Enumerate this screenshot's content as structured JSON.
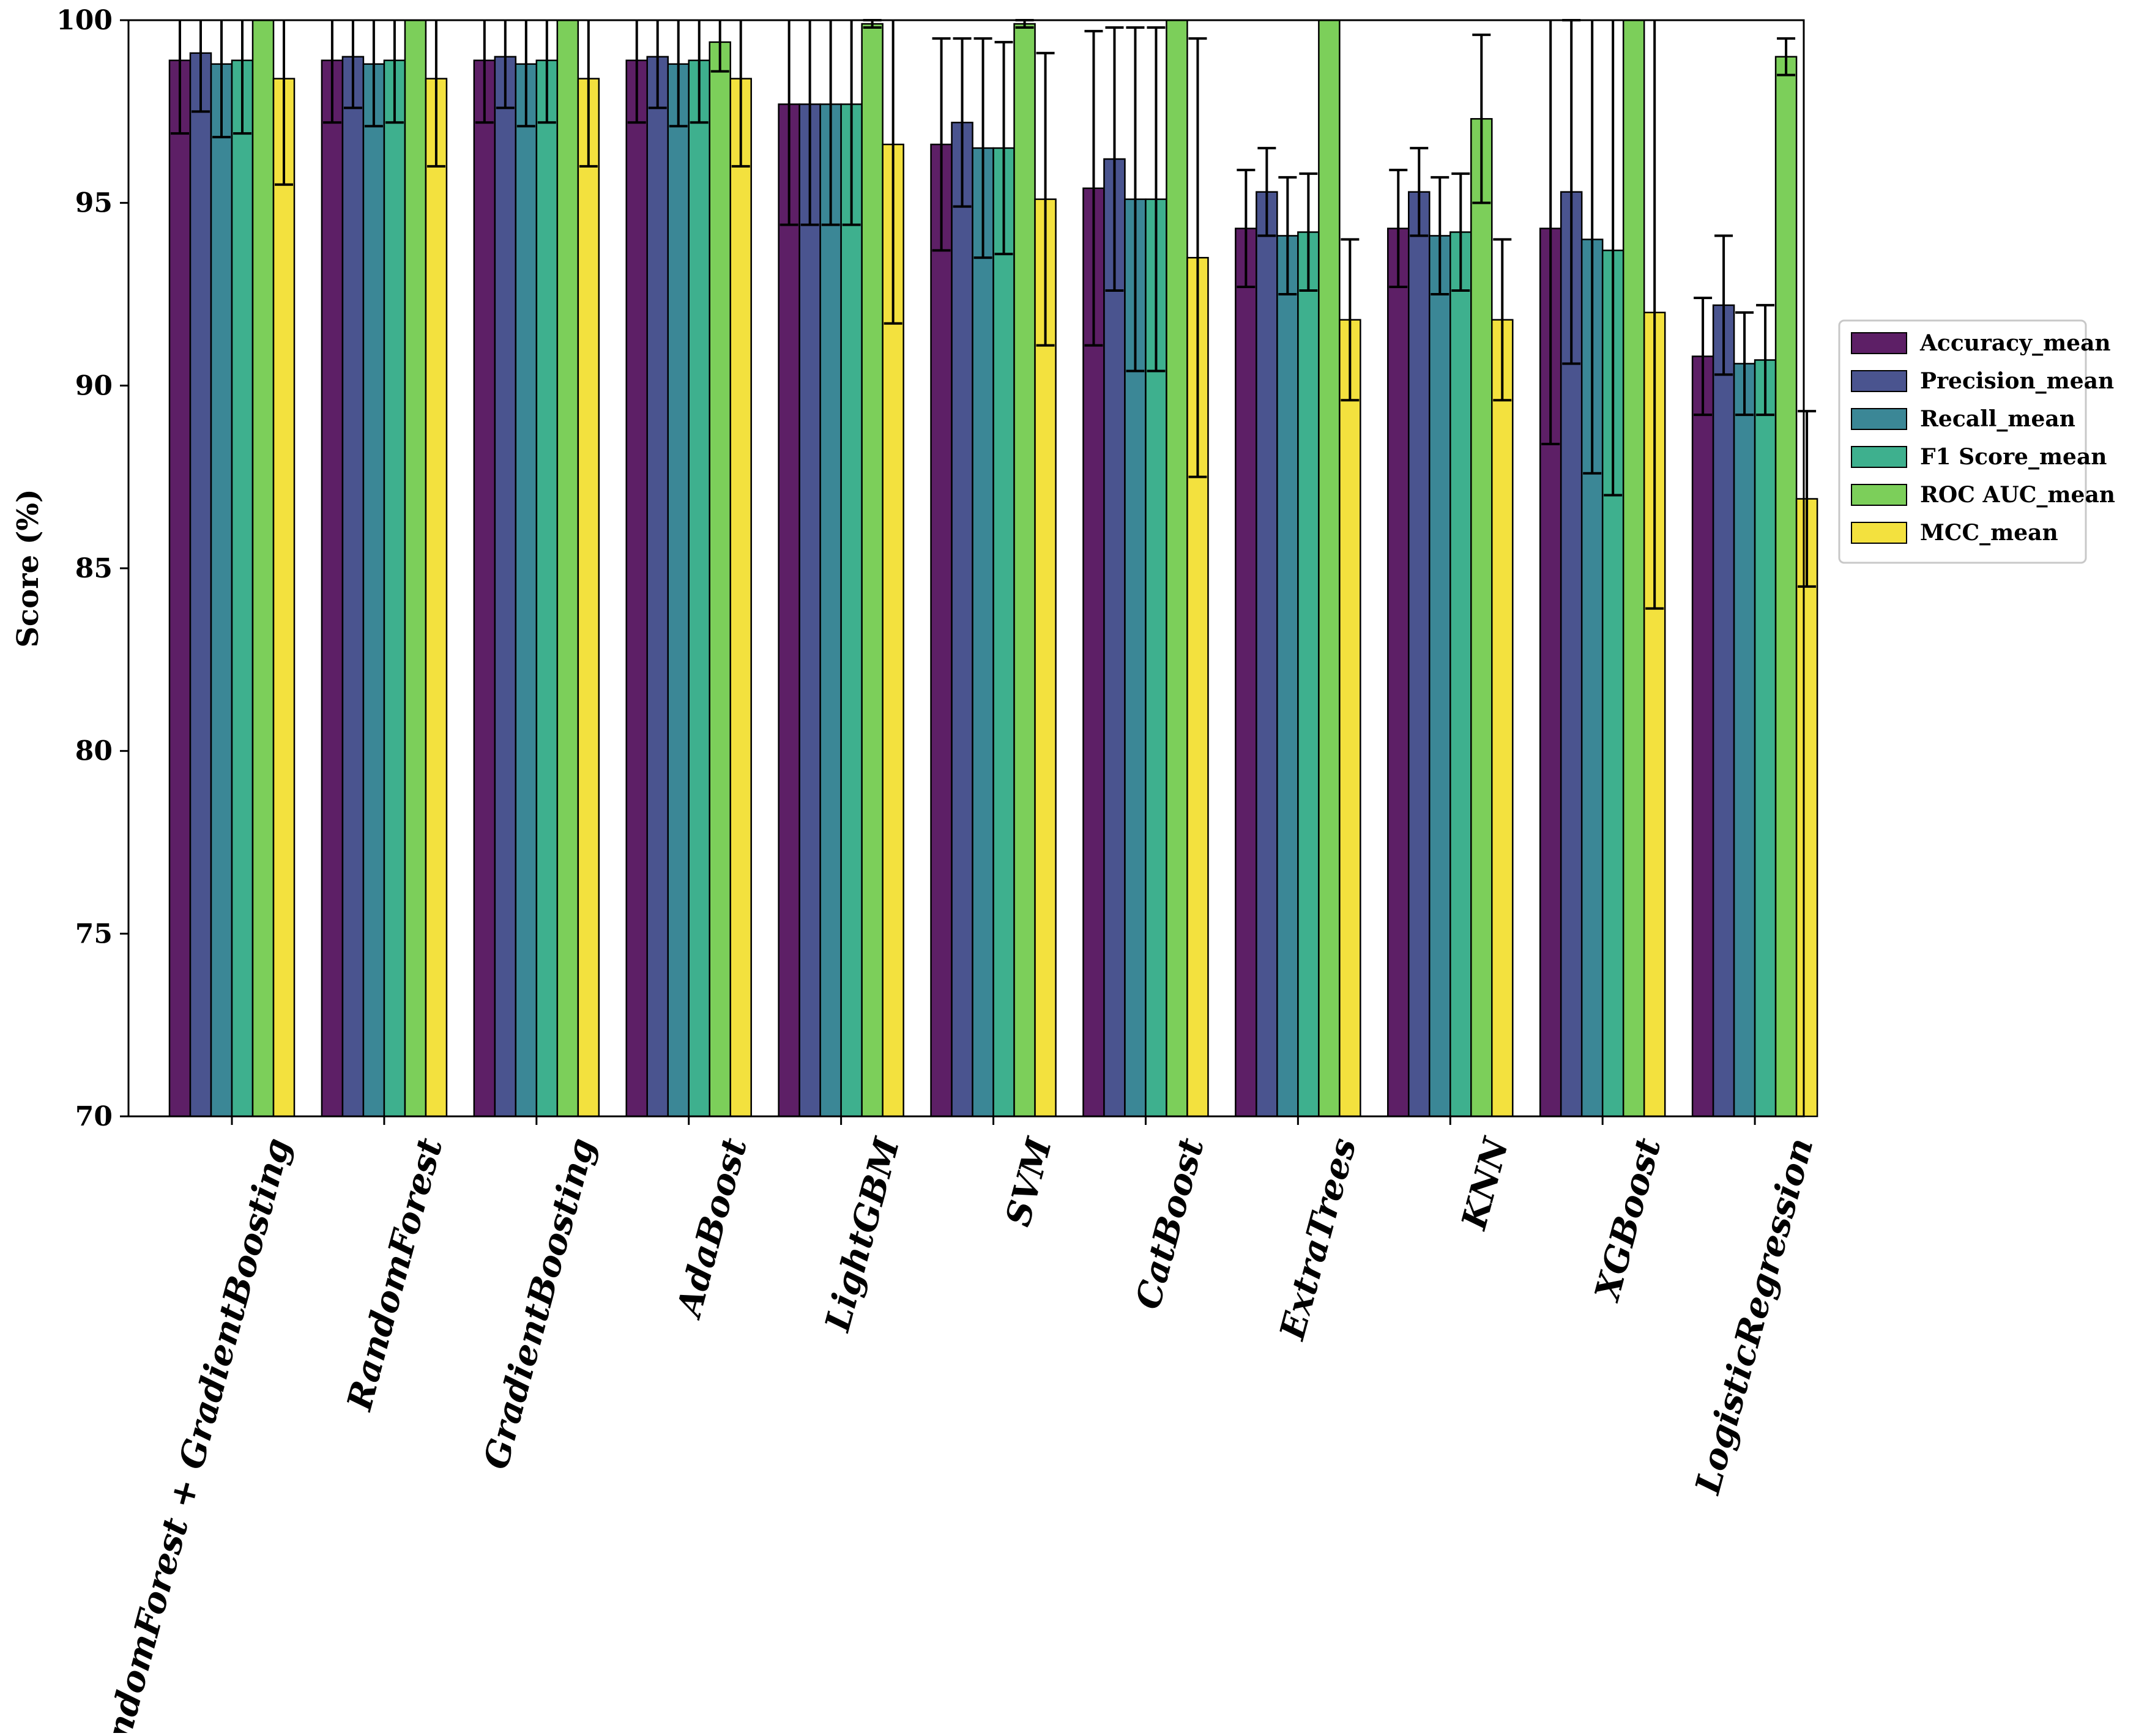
{
  "chart_data": {
    "type": "bar",
    "title": "",
    "xlabel": "",
    "ylabel": "Score (%)",
    "ylim": [
      70,
      100
    ],
    "yticks": [
      "70",
      "75",
      "80",
      "85",
      "90",
      "95",
      "100"
    ],
    "grid": false,
    "legend_position": "right",
    "categories": [
      "RandomForest + GradientBoosting",
      "RandomForest",
      "GradientBoosting",
      "AdaBoost",
      "LightGBM",
      "SVM",
      "CatBoost",
      "ExtraTrees",
      "KNN",
      "XGBoost",
      "LogisticRegression"
    ],
    "series": [
      {
        "name": "Accuracy_mean",
        "color": "#5d1f66",
        "values": [
          98.9,
          98.9,
          98.9,
          98.9,
          97.7,
          96.6,
          95.4,
          94.3,
          94.3,
          94.3,
          90.8
        ],
        "errors": [
          2.0,
          1.7,
          1.7,
          1.7,
          3.3,
          2.9,
          4.3,
          1.6,
          1.6,
          5.9,
          1.6
        ]
      },
      {
        "name": "Precision_mean",
        "color": "#4a548f",
        "values": [
          99.1,
          99.0,
          99.0,
          99.0,
          97.7,
          97.2,
          96.2,
          95.3,
          95.3,
          95.3,
          92.2
        ],
        "errors": [
          1.6,
          1.4,
          1.4,
          1.4,
          3.3,
          2.3,
          3.6,
          1.2,
          1.2,
          4.7,
          1.9
        ]
      },
      {
        "name": "Recall_mean",
        "color": "#3b8796",
        "values": [
          98.8,
          98.8,
          98.8,
          98.8,
          97.7,
          96.5,
          95.1,
          94.1,
          94.1,
          94.0,
          90.6
        ],
        "errors": [
          2.0,
          1.7,
          1.7,
          1.7,
          3.3,
          3.0,
          4.7,
          1.6,
          1.6,
          6.4,
          1.4
        ]
      },
      {
        "name": "F1 Score_mean",
        "color": "#3eb08e",
        "values": [
          98.9,
          98.9,
          98.9,
          98.9,
          97.7,
          96.5,
          95.1,
          94.2,
          94.2,
          93.7,
          90.7
        ],
        "errors": [
          2.0,
          1.7,
          1.7,
          1.7,
          3.3,
          2.9,
          4.7,
          1.6,
          1.6,
          6.7,
          1.5
        ]
      },
      {
        "name": "ROC AUC_mean",
        "color": "#7ccf5a",
        "values": [
          100.0,
          100.0,
          100.0,
          99.4,
          99.9,
          99.9,
          100.0,
          100.0,
          97.3,
          100.0,
          99.0
        ],
        "errors": [
          0.0,
          0.0,
          0.0,
          0.8,
          0.1,
          0.1,
          0.0,
          0.0,
          2.3,
          0.0,
          0.5
        ]
      },
      {
        "name": "MCC_mean",
        "color": "#f3e13e",
        "values": [
          98.4,
          98.4,
          98.4,
          98.4,
          96.6,
          95.1,
          93.5,
          91.8,
          91.8,
          92.0,
          86.9
        ],
        "errors": [
          2.9,
          2.4,
          2.4,
          2.4,
          4.9,
          4.0,
          6.0,
          2.2,
          2.2,
          8.1,
          2.4
        ]
      }
    ]
  }
}
